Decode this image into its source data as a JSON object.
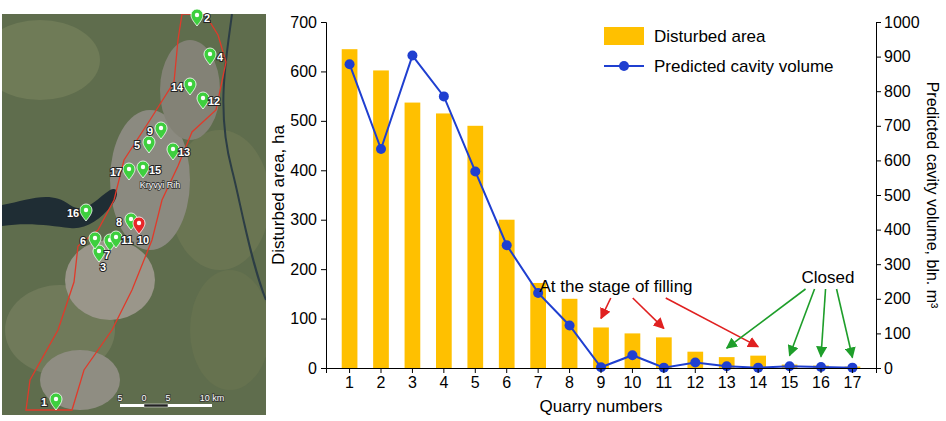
{
  "chart_data": {
    "type": "bar",
    "categories": [
      "1",
      "2",
      "3",
      "4",
      "5",
      "6",
      "7",
      "8",
      "9",
      "10",
      "11",
      "12",
      "13",
      "14",
      "15",
      "16",
      "17"
    ],
    "xlabel": "Quarry numbers",
    "ylabel": "Disturbed area, ha",
    "y2label": "Predicted cavity volume, bln. m³",
    "ylim": [
      0,
      700
    ],
    "yticks": [
      0,
      100,
      200,
      300,
      400,
      500,
      600,
      700
    ],
    "y2lim": [
      0,
      1000
    ],
    "y2ticks": [
      0,
      100,
      200,
      300,
      400,
      500,
      600,
      700,
      800,
      900,
      1000
    ],
    "legend": "upper right",
    "series": [
      {
        "name": "Disturbed area",
        "type": "bar",
        "color": "#ffc000",
        "values": [
          645,
          602,
          537,
          515,
          490,
          300,
          172,
          140,
          82,
          70,
          62,
          33,
          22,
          25,
          7,
          5,
          3
        ]
      },
      {
        "name": "Predicted cavity volume",
        "type": "line",
        "color": "#1f3fd0",
        "marker": "circle",
        "axis": "y2",
        "values": [
          878,
          633,
          903,
          785,
          568,
          355,
          217,
          123,
          2,
          37,
          1,
          16,
          5,
          1,
          5,
          3,
          1
        ]
      }
    ],
    "annotations": [
      {
        "text": "At the stage of filling",
        "color": "#e02020",
        "targets": [
          "9",
          "11",
          "14"
        ]
      },
      {
        "text": "Closed",
        "color": "#1e9e2a",
        "targets": [
          "13",
          "15",
          "16",
          "17"
        ]
      }
    ]
  },
  "map": {
    "city": "Kryvyi Rih",
    "scale_labels": [
      "5",
      "0",
      "5",
      "10 km"
    ],
    "pins": [
      {
        "label": "1",
        "color": "#3ecf3e"
      },
      {
        "label": "2",
        "color": "#3ecf3e"
      },
      {
        "label": "3",
        "color": "#3ecf3e"
      },
      {
        "label": "4",
        "color": "#3ecf3e"
      },
      {
        "label": "5",
        "color": "#3ecf3e"
      },
      {
        "label": "6",
        "color": "#3ecf3e"
      },
      {
        "label": "7",
        "color": "#3ecf3e"
      },
      {
        "label": "8",
        "color": "#3ecf3e"
      },
      {
        "label": "9",
        "color": "#3ecf3e"
      },
      {
        "label": "10",
        "color": "#e8262a"
      },
      {
        "label": "11",
        "color": "#3ecf3e"
      },
      {
        "label": "12",
        "color": "#3ecf3e"
      },
      {
        "label": "13",
        "color": "#3ecf3e"
      },
      {
        "label": "14",
        "color": "#3ecf3e"
      },
      {
        "label": "15",
        "color": "#3ecf3e"
      },
      {
        "label": "16",
        "color": "#3ecf3e"
      },
      {
        "label": "17",
        "color": "#3ecf3e"
      }
    ]
  }
}
